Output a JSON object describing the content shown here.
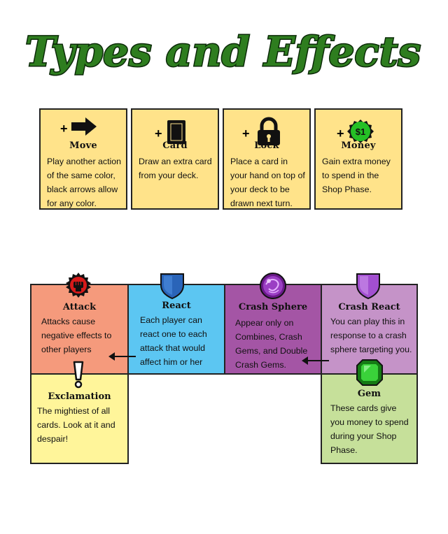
{
  "title": "Types and Effects",
  "colors": {
    "title_green": "#2e7d1f",
    "top_box": "#ffe38a",
    "attack": "#f59a7c",
    "react": "#5cc6f2",
    "crash_sphere": "#a455a5",
    "crash_react": "#c593c8",
    "exclamation": "#fff59a",
    "gem": "#c6e09a"
  },
  "effects": [
    {
      "prefix": "+",
      "icon": "arrow-right-icon",
      "name": "Move",
      "desc": "Play another action of the same color, black arrows allow for any color."
    },
    {
      "prefix": "+",
      "icon": "card-icon",
      "name": "Card",
      "desc": "Draw an extra card from your deck."
    },
    {
      "prefix": "+",
      "icon": "lock-icon",
      "name": "Lock",
      "desc": "Place a card in your hand on top of your deck to be drawn next turn."
    },
    {
      "prefix": "+",
      "icon": "money-icon",
      "icon_text": "$1",
      "name": "Money",
      "desc": "Gain extra money to spend in the Shop Phase."
    }
  ],
  "types": {
    "attack": {
      "icon": "fist-icon",
      "name": "Attack",
      "desc": "Attacks cause negative effects to other players"
    },
    "react": {
      "icon": "shield-icon",
      "name": "React",
      "desc": "Each player can react one to each attack that would affect him or her"
    },
    "crash_sphere": {
      "icon": "sphere-icon",
      "name": "Crash Sphere",
      "desc": "Appear only on Combines, Crash Gems, and Double Crash Gems."
    },
    "crash_react": {
      "icon": "shield-icon",
      "name": "Crash React",
      "desc": "You can play this in response to a crash sphere targeting you."
    },
    "exclamation": {
      "icon": "exclamation-icon",
      "name": "Exclamation",
      "desc": "The mightiest of all cards. Look at it and despair!"
    },
    "gem": {
      "icon": "gem-icon",
      "name": "Gem",
      "desc": "These cards give you money to spend during your Shop Phase."
    }
  }
}
